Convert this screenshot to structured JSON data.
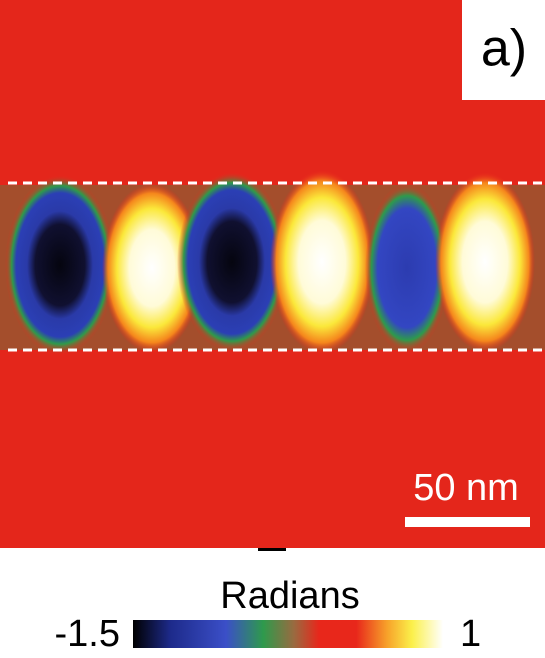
{
  "panel_label": "a)",
  "scale_bar": "50 nm",
  "colorbar": {
    "title": "Radians",
    "min": -1.5,
    "max": 1
  }
}
